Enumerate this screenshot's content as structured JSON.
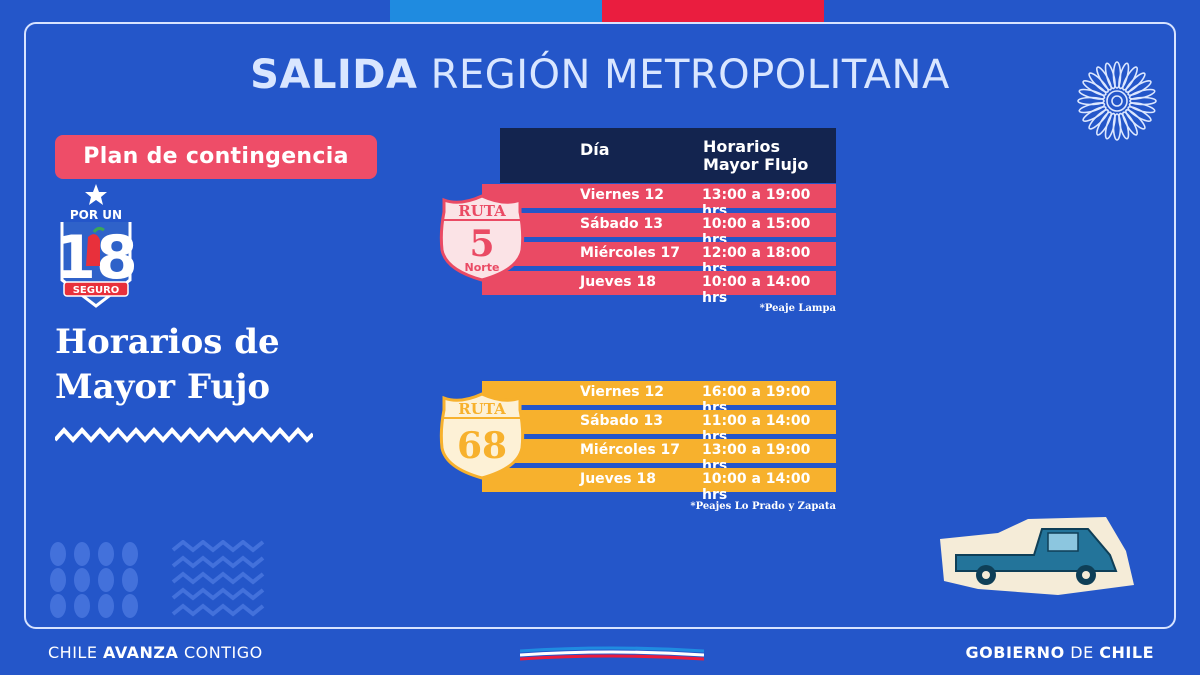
{
  "title": {
    "bold": "SALIDA",
    "rest": " REGIÓN METROPOLITANA"
  },
  "plan_tag": "Plan de contingencia",
  "logo": {
    "top": "POR UN",
    "number": "18",
    "bottom": "SEGURO"
  },
  "side_title": {
    "line1": "Horarios de",
    "line2": "Mayor Fujo"
  },
  "table_header": {
    "day": "Día",
    "hours_line1": "Horarios",
    "hours_line2": "Mayor Flujo"
  },
  "route5": {
    "sign": {
      "top": "RUTA",
      "number": "5",
      "sub": "Norte"
    },
    "rows": [
      {
        "day": "Viernes 12",
        "time": "13:00 a 19:00 hrs"
      },
      {
        "day": "Sábado 13",
        "time": "10:00 a 15:00 hrs"
      },
      {
        "day": "Miércoles 17",
        "time": "12:00 a 18:00 hrs"
      },
      {
        "day": "Jueves 18",
        "time": "10:00 a 14:00 hrs"
      }
    ],
    "note": "*Peaje Lampa"
  },
  "route68": {
    "sign": {
      "top": "RUTA",
      "number": "68"
    },
    "rows": [
      {
        "day": "Viernes 12",
        "time": "16:00 a 19:00 hrs"
      },
      {
        "day": "Sábado 13",
        "time": "11:00 a 14:00 hrs"
      },
      {
        "day": "Miércoles 17",
        "time": "13:00 a 19:00 hrs"
      },
      {
        "day": "Jueves 18",
        "time": "10:00 a 14:00 hrs"
      }
    ],
    "note": "*Peajes Lo Prado y Zapata"
  },
  "footer": {
    "left_a": "CHILE ",
    "left_b": "AVANZA",
    "left_c": " CONTIGO",
    "right_a": "GOBIERNO",
    "right_b": " DE ",
    "right_c": "CHILE"
  },
  "colors": {
    "background": "#2456c9",
    "red_row": "#ea4a64",
    "yellow_row": "#f7b12d",
    "header": "#13244f"
  }
}
